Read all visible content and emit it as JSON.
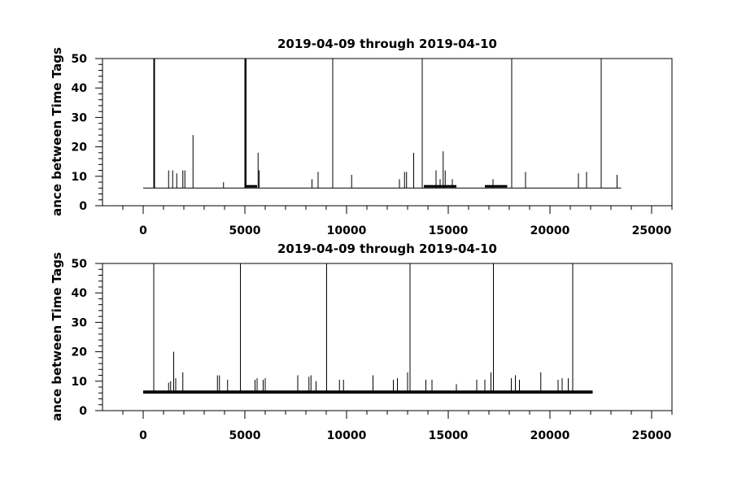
{
  "chart_data": [
    {
      "type": "line",
      "title": "2019-04-09 through 2019-04-10",
      "ylabel": "ance between Time Tags",
      "xlabel": "",
      "xlim": [
        -2000,
        26000
      ],
      "ylim": [
        0,
        50
      ],
      "xticks": [
        0,
        5000,
        10000,
        15000,
        20000,
        25000
      ],
      "xtick_labels": [
        "0",
        "5000",
        "10000",
        "15000",
        "20000",
        "25000"
      ],
      "yticks": [
        0,
        10,
        20,
        30,
        40,
        50
      ],
      "ytick_labels": [
        "0",
        "10",
        "20",
        "30",
        "40",
        "50"
      ],
      "baseline": 6,
      "x_end": 23500,
      "bands": [
        {
          "x0": 5000,
          "x1": 5600,
          "y": 6.6
        },
        {
          "x0": 13800,
          "x1": 15400,
          "y": 6.6
        },
        {
          "x0": 16800,
          "x1": 17900,
          "y": 6.6
        }
      ],
      "spikes": [
        {
          "x": 520,
          "y": 50
        },
        {
          "x": 540,
          "y": 50
        },
        {
          "x": 560,
          "y": 50
        },
        {
          "x": 1250,
          "y": 12
        },
        {
          "x": 1450,
          "y": 12
        },
        {
          "x": 1650,
          "y": 11
        },
        {
          "x": 1950,
          "y": 12
        },
        {
          "x": 2050,
          "y": 12
        },
        {
          "x": 2450,
          "y": 24
        },
        {
          "x": 3950,
          "y": 8
        },
        {
          "x": 5000,
          "y": 50
        },
        {
          "x": 5030,
          "y": 50
        },
        {
          "x": 5060,
          "y": 50
        },
        {
          "x": 5650,
          "y": 18
        },
        {
          "x": 5700,
          "y": 12
        },
        {
          "x": 8300,
          "y": 9
        },
        {
          "x": 8600,
          "y": 11.5
        },
        {
          "x": 9320,
          "y": 50
        },
        {
          "x": 10250,
          "y": 10.5
        },
        {
          "x": 12600,
          "y": 9
        },
        {
          "x": 12850,
          "y": 11.5
        },
        {
          "x": 12950,
          "y": 11.5
        },
        {
          "x": 13300,
          "y": 18
        },
        {
          "x": 13720,
          "y": 50
        },
        {
          "x": 14400,
          "y": 12
        },
        {
          "x": 14600,
          "y": 9
        },
        {
          "x": 14750,
          "y": 18.5
        },
        {
          "x": 14850,
          "y": 12
        },
        {
          "x": 15200,
          "y": 9
        },
        {
          "x": 17200,
          "y": 9
        },
        {
          "x": 18120,
          "y": 50
        },
        {
          "x": 18800,
          "y": 11.5
        },
        {
          "x": 21400,
          "y": 11
        },
        {
          "x": 21800,
          "y": 11.5
        },
        {
          "x": 22520,
          "y": 50
        },
        {
          "x": 23300,
          "y": 10.5
        }
      ]
    },
    {
      "type": "line",
      "title": "2019-04-09 through 2019-04-10",
      "ylabel": "ance between Time Tags",
      "xlabel": "",
      "xlim": [
        -2000,
        26000
      ],
      "ylim": [
        0,
        50
      ],
      "xticks": [
        0,
        5000,
        10000,
        15000,
        20000,
        25000
      ],
      "xtick_labels": [
        "0",
        "5000",
        "10000",
        "15000",
        "20000",
        "25000"
      ],
      "yticks": [
        0,
        10,
        20,
        30,
        40,
        50
      ],
      "ytick_labels": [
        "0",
        "10",
        "20",
        "30",
        "40",
        "50"
      ],
      "baseline": 6.7,
      "x_end": 22100,
      "bands": [
        {
          "x0": 0,
          "x1": 22100,
          "y": 6.2
        }
      ],
      "spikes": [
        {
          "x": 520,
          "y": 50
        },
        {
          "x": 1250,
          "y": 9.5
        },
        {
          "x": 1350,
          "y": 10
        },
        {
          "x": 1500,
          "y": 20
        },
        {
          "x": 1600,
          "y": 11
        },
        {
          "x": 1950,
          "y": 13
        },
        {
          "x": 3650,
          "y": 12
        },
        {
          "x": 3750,
          "y": 12
        },
        {
          "x": 4150,
          "y": 10.5
        },
        {
          "x": 4780,
          "y": 50
        },
        {
          "x": 5500,
          "y": 10.5
        },
        {
          "x": 5600,
          "y": 11
        },
        {
          "x": 5900,
          "y": 10.5
        },
        {
          "x": 6000,
          "y": 11
        },
        {
          "x": 7600,
          "y": 12
        },
        {
          "x": 8150,
          "y": 11.5
        },
        {
          "x": 8250,
          "y": 12
        },
        {
          "x": 8500,
          "y": 10
        },
        {
          "x": 9020,
          "y": 50
        },
        {
          "x": 9650,
          "y": 10.5
        },
        {
          "x": 9850,
          "y": 10.5
        },
        {
          "x": 11300,
          "y": 12
        },
        {
          "x": 12300,
          "y": 10.5
        },
        {
          "x": 12500,
          "y": 11
        },
        {
          "x": 13000,
          "y": 13
        },
        {
          "x": 13120,
          "y": 50
        },
        {
          "x": 13900,
          "y": 10.5
        },
        {
          "x": 14200,
          "y": 10.5
        },
        {
          "x": 15400,
          "y": 9
        },
        {
          "x": 16400,
          "y": 10.5
        },
        {
          "x": 16800,
          "y": 10.5
        },
        {
          "x": 17100,
          "y": 13
        },
        {
          "x": 17220,
          "y": 50
        },
        {
          "x": 18100,
          "y": 11
        },
        {
          "x": 18300,
          "y": 12
        },
        {
          "x": 18500,
          "y": 10.5
        },
        {
          "x": 19550,
          "y": 13
        },
        {
          "x": 20400,
          "y": 10.5
        },
        {
          "x": 20600,
          "y": 11
        },
        {
          "x": 20900,
          "y": 11
        },
        {
          "x": 21120,
          "y": 50
        }
      ]
    }
  ]
}
